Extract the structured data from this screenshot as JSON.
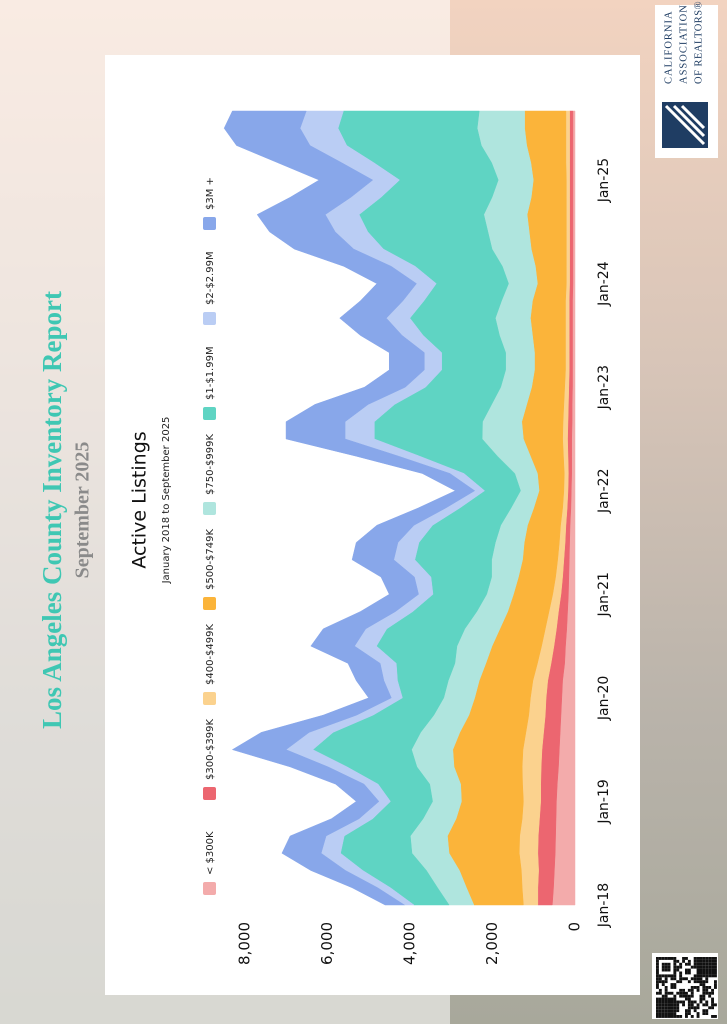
{
  "header": {
    "title": "Los Angeles County Inventory Report",
    "subtitle": "September 2025"
  },
  "logo": {
    "lines": [
      "CALIFORNIA",
      "ASSOCIATION",
      "OF REALTORS®"
    ]
  },
  "chart_data": {
    "type": "stacked-area",
    "title": "Active Listings",
    "subtitle": "January 2018 to September 2025",
    "categories": [
      "Jan-18",
      null,
      null,
      null,
      null,
      null,
      "Jan-19",
      null,
      null,
      null,
      null,
      null,
      "Jan-20",
      null,
      null,
      null,
      null,
      null,
      "Jan-21",
      null,
      null,
      null,
      null,
      null,
      "Jan-22",
      null,
      null,
      null,
      null,
      null,
      "Jan-23",
      null,
      null,
      null,
      null,
      null,
      "Jan-24",
      null,
      null,
      null,
      null,
      null,
      "Jan-25",
      null,
      null,
      null,
      null
    ],
    "ylim": [
      0,
      8600
    ],
    "yticks": [
      0,
      {
        "value": 2000,
        "label": "2,000"
      },
      {
        "value": 4000,
        "label": "4,000"
      },
      {
        "value": 6000,
        "label": "6,000"
      },
      {
        "value": 8000,
        "label": "8,000"
      }
    ],
    "grid": false,
    "series": [
      {
        "name": "< $300K",
        "color": "#f3abab",
        "values": [
          550,
          520,
          500,
          480,
          470,
          460,
          450,
          430,
          400,
          380,
          360,
          340,
          320,
          300,
          250,
          230,
          200,
          180,
          160,
          150,
          140,
          130,
          120,
          100,
          90,
          80,
          80,
          80,
          70,
          70,
          60,
          60,
          60,
          60,
          60,
          60,
          50,
          50,
          50,
          50,
          50,
          50,
          50,
          50,
          50,
          50,
          50
        ]
      },
      {
        "name": "$300-$399K",
        "color": "#ec6670",
        "values": [
          350,
          380,
          380,
          420,
          420,
          400,
          380,
          400,
          420,
          420,
          400,
          380,
          380,
          360,
          330,
          280,
          250,
          220,
          180,
          150,
          130,
          110,
          100,
          90,
          80,
          80,
          90,
          100,
          100,
          90,
          90,
          80,
          80,
          80,
          80,
          80,
          80,
          80,
          80,
          80,
          80,
          80,
          80,
          80,
          80,
          80,
          80
        ]
      },
      {
        "name": "$400-$499K",
        "color": "#fbd28e",
        "values": [
          350,
          380,
          420,
          450,
          450,
          420,
          420,
          440,
          460,
          460,
          430,
          400,
          380,
          360,
          330,
          300,
          270,
          230,
          200,
          170,
          150,
          140,
          130,
          110,
          100,
          100,
          110,
          120,
          120,
          110,
          100,
          90,
          90,
          90,
          90,
          90,
          80,
          80,
          80,
          80,
          80,
          80,
          80,
          90,
          90,
          90,
          90
        ]
      },
      {
        "name": "$500-$749K",
        "color": "#fbb43a",
        "values": [
          1200,
          1350,
          1500,
          1700,
          1750,
          1600,
          1500,
          1500,
          1650,
          1700,
          1600,
          1450,
          1350,
          1300,
          1250,
          1200,
          1100,
          1000,
          950,
          900,
          850,
          850,
          800,
          700,
          600,
          650,
          800,
          950,
          1000,
          900,
          800,
          750,
          750,
          800,
          850,
          800,
          700,
          750,
          850,
          900,
          950,
          850,
          800,
          850,
          950,
          1000,
          1000
        ]
      },
      {
        "name": "$750-$999K",
        "color": "#afe5de",
        "values": [
          600,
          700,
          800,
          900,
          900,
          800,
          700,
          750,
          900,
          1000,
          950,
          850,
          750,
          750,
          750,
          850,
          850,
          750,
          650,
          650,
          750,
          700,
          650,
          550,
          450,
          550,
          800,
          1000,
          950,
          850,
          750,
          700,
          700,
          800,
          850,
          750,
          700,
          800,
          950,
          1000,
          1050,
          950,
          850,
          950,
          1100,
          1150,
          1100
        ]
      },
      {
        "name": "$1-$1.99M",
        "color": "#5fd4c3",
        "values": [
          850,
          1140,
          1540,
          1730,
          1600,
          1220,
          1020,
          1250,
          1690,
          2390,
          2120,
          1470,
          1000,
          1230,
          1420,
          1950,
          1890,
          1550,
          1300,
          1470,
          1860,
          1850,
          1650,
          1240,
          870,
          1230,
          1880,
          2610,
          2620,
          2350,
          1820,
          1550,
          1550,
          1850,
          2070,
          1880,
          1750,
          2110,
          2630,
          2910,
          3020,
          2690,
          2390,
          2850,
          3260,
          3370,
          3290
        ]
      },
      {
        "name": "$2-$2.99M",
        "color": "#bacdf4",
        "values": [
          230,
          310,
          420,
          470,
          440,
          330,
          280,
          340,
          460,
          650,
          580,
          400,
          270,
          330,
          390,
          530,
          510,
          420,
          350,
          400,
          510,
          510,
          450,
          340,
          240,
          340,
          510,
          710,
          710,
          640,
          490,
          420,
          420,
          510,
          570,
          510,
          480,
          580,
          720,
          790,
          820,
          730,
          650,
          780,
          890,
          920,
          900
        ]
      },
      {
        "name": "$3M +",
        "color": "#88a7ea",
        "values": [
          470,
          620,
          840,
          950,
          870,
          670,
          550,
          690,
          920,
          1300,
          1160,
          810,
          550,
          670,
          780,
          1060,
          1030,
          850,
          710,
          810,
          1010,
          1010,
          900,
          670,
          470,
          670,
          1030,
          1430,
          1430,
          1290,
          990,
          850,
          850,
          1010,
          1130,
          1030,
          960,
          1150,
          1440,
          1590,
          1650,
          1470,
          1300,
          1550,
          1780,
          1840,
          1790
        ]
      }
    ]
  }
}
